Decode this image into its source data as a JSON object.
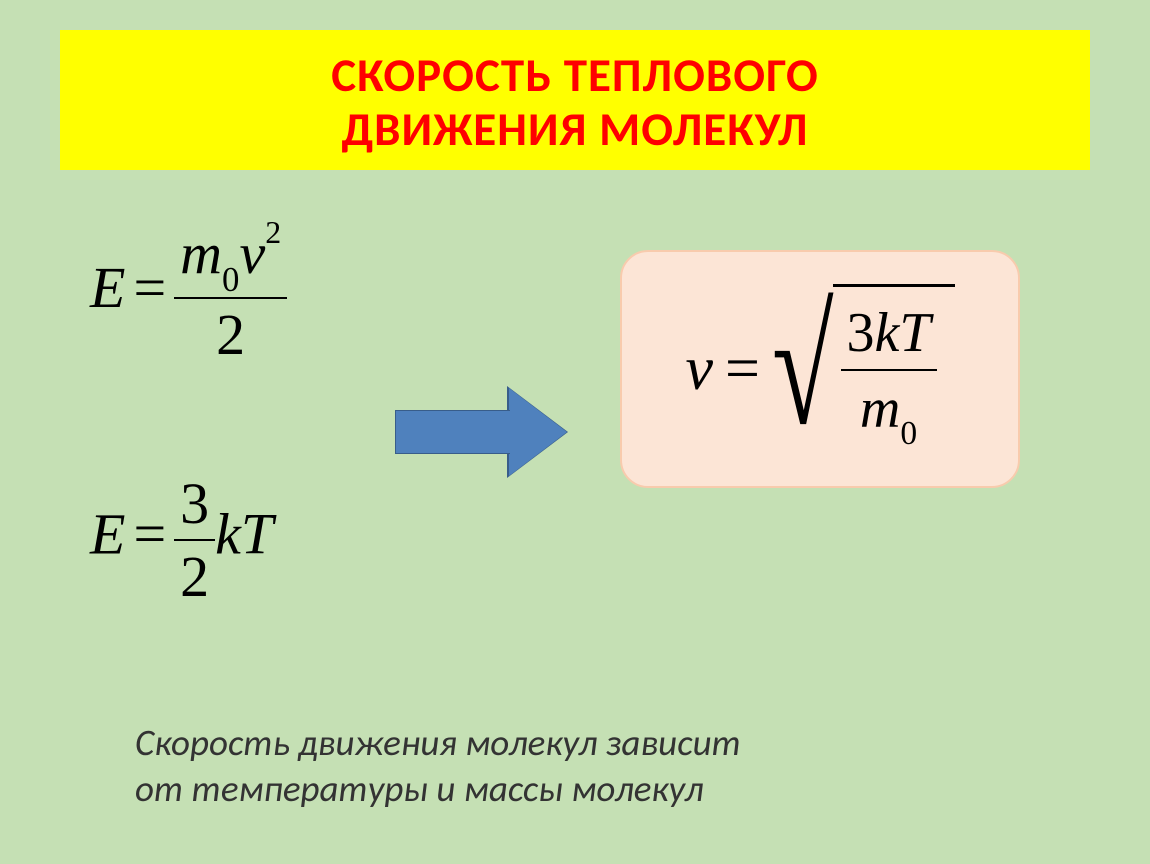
{
  "slide": {
    "background_color": "#c5e0b4",
    "title": {
      "line1": "СКОРОСТЬ  ТЕПЛОВОГО",
      "line2": "ДВИЖЕНИЯ  МОЛЕКУЛ",
      "background_color": "#ffff00",
      "text_color": "#ff0000",
      "fontsize": 47,
      "font_weight": "bold"
    },
    "formula_E1": {
      "lhs": "E",
      "num_m": "m",
      "num_m_sub": "0",
      "num_v": "v",
      "num_v_sup": "2",
      "den": "2",
      "fontsize": 58
    },
    "formula_E2": {
      "lhs": "E",
      "num": "3",
      "den": "2",
      "k": "k",
      "T": "T",
      "fontsize": 58
    },
    "arrow": {
      "fill_color": "#4f81bd",
      "border_color": "#385d8a"
    },
    "result": {
      "box_fill": "#fce5d6",
      "box_border": "#f8cbad",
      "lhs": "v",
      "num_3": "3",
      "num_k": "k",
      "num_T": "T",
      "den_m": "m",
      "den_m_sub": "0",
      "fontsize": 62
    },
    "caption": {
      "line1": "Скорость движения молекул зависит",
      "line2": "от температуры и массы молекул",
      "fontsize": 37,
      "font_style": "italic"
    }
  }
}
